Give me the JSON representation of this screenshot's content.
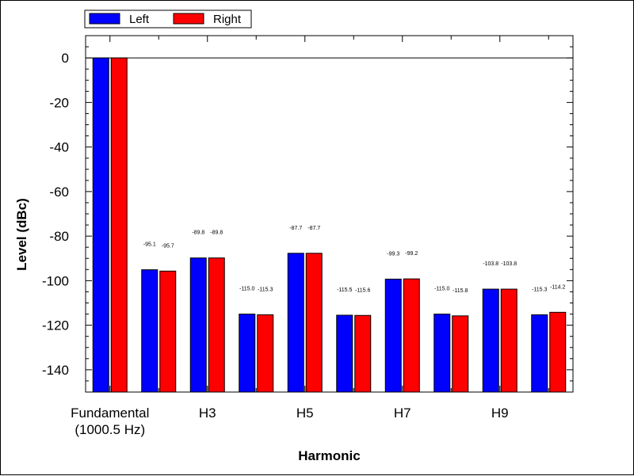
{
  "chart_data": {
    "type": "bar",
    "xlabel": "Harmonic",
    "ylabel": "Level (dBc)",
    "ylim": [
      -150,
      10
    ],
    "yticks": [
      0,
      -20,
      -40,
      -60,
      -80,
      -100,
      -120,
      -140
    ],
    "category_labels": [
      {
        "index": 0,
        "lines": [
          "Fundamental",
          "(1000.5 Hz)"
        ]
      },
      {
        "index": 2,
        "lines": [
          "H3"
        ]
      },
      {
        "index": 4,
        "lines": [
          "H5"
        ]
      },
      {
        "index": 6,
        "lines": [
          "H7"
        ]
      },
      {
        "index": 8,
        "lines": [
          "H9"
        ]
      }
    ],
    "legend_position": "top-left",
    "series": [
      {
        "name": "Left",
        "color": "#0000ff",
        "values": [
          0,
          -95.1,
          -89.8,
          -115.0,
          -87.7,
          -115.5,
          -99.3,
          -115.0,
          -103.8,
          -115.3
        ],
        "labels": [
          "",
          "-95.1",
          "-89.8",
          "-115.0",
          "-87.7",
          "-115.5",
          "-99.3",
          "-115.0",
          "-103.8",
          "-115.3"
        ]
      },
      {
        "name": "Right",
        "color": "#ff0000",
        "values": [
          0,
          -95.7,
          -89.8,
          -115.3,
          -87.7,
          -115.6,
          -99.2,
          -115.8,
          -103.8,
          -114.2
        ],
        "labels": [
          "",
          "-95.7",
          "-89.8",
          "-115.3",
          "-87.7",
          "-115.6",
          "-99.2",
          "-115.8",
          "-103.8",
          "-114.2"
        ]
      }
    ]
  }
}
